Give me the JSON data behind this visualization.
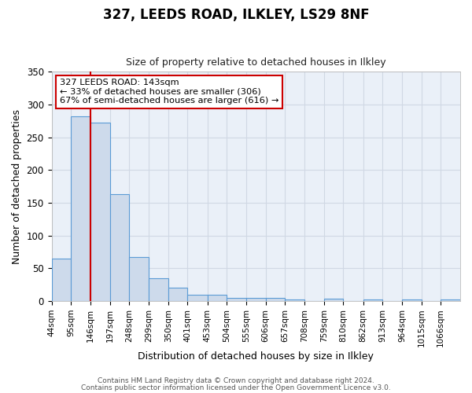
{
  "title": "327, LEEDS ROAD, ILKLEY, LS29 8NF",
  "subtitle": "Size of property relative to detached houses in Ilkley",
  "xlabel": "Distribution of detached houses by size in Ilkley",
  "ylabel": "Number of detached properties",
  "bar_edges": [
    44,
    95,
    146,
    197,
    248,
    299,
    350,
    401,
    453,
    504,
    555,
    606,
    657,
    708,
    759,
    810,
    862,
    913,
    964,
    1015,
    1066,
    1117
  ],
  "bar_heights": [
    65,
    282,
    273,
    163,
    67,
    35,
    20,
    10,
    10,
    5,
    5,
    5,
    2,
    0,
    4,
    0,
    2,
    0,
    2,
    0,
    2,
    0
  ],
  "bar_color": "#cddaeb",
  "bar_edge_color": "#5b9bd5",
  "vline_x": 146,
  "vline_color": "#cc0000",
  "ylim": [
    0,
    350
  ],
  "yticks": [
    0,
    50,
    100,
    150,
    200,
    250,
    300,
    350
  ],
  "annotation_text_line1": "327 LEEDS ROAD: 143sqm",
  "annotation_text_line2": "← 33% of detached houses are smaller (306)",
  "annotation_text_line3": "67% of semi-detached houses are larger (616) →",
  "annotation_box_facecolor": "#ffffff",
  "annotation_box_edgecolor": "#cc0000",
  "footer_line1": "Contains HM Land Registry data © Crown copyright and database right 2024.",
  "footer_line2": "Contains public sector information licensed under the Open Government Licence v3.0.",
  "fig_facecolor": "#ffffff",
  "plot_facecolor": "#eaf0f8",
  "grid_color": "#d0d8e4",
  "tick_labels": [
    "44sqm",
    "95sqm",
    "146sqm",
    "197sqm",
    "248sqm",
    "299sqm",
    "350sqm",
    "401sqm",
    "453sqm",
    "504sqm",
    "555sqm",
    "606sqm",
    "657sqm",
    "708sqm",
    "759sqm",
    "810sqm",
    "862sqm",
    "913sqm",
    "964sqm",
    "1015sqm",
    "1066sqm"
  ],
  "tick_label_fontsize": 7.5,
  "axis_label_fontsize": 9,
  "title_fontsize": 12,
  "subtitle_fontsize": 9
}
